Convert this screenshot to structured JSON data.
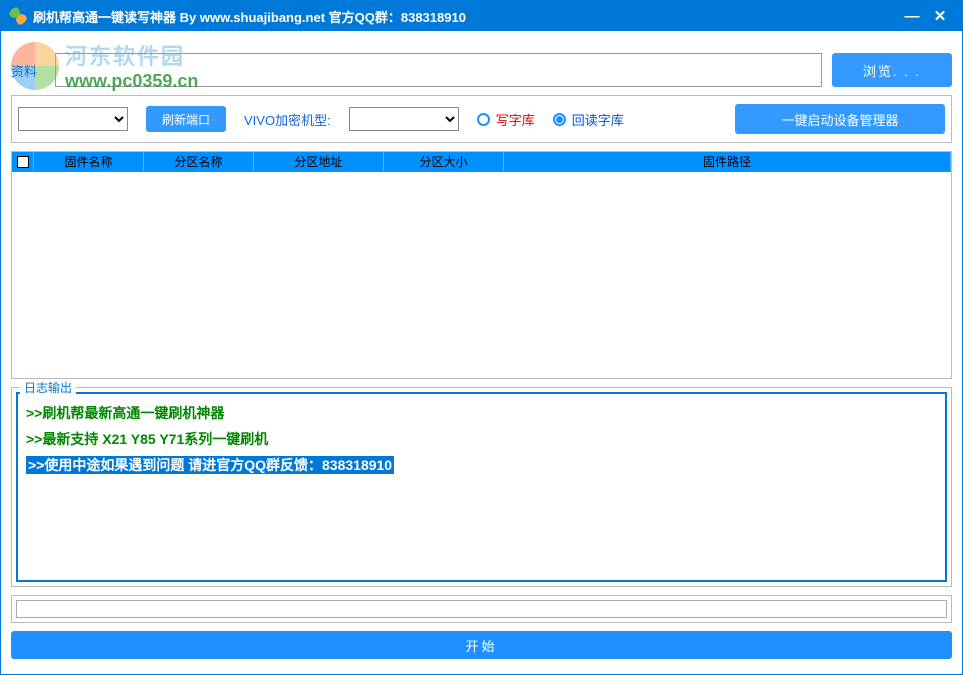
{
  "window": {
    "title": "刷机帮高通一键读写神器 By www.shuajibang.net 官方QQ群：838318910"
  },
  "watermark": {
    "cn": "河东软件园",
    "url": "www.pc0359.cn"
  },
  "row1": {
    "label": "资料",
    "path_value": "",
    "browse_label": "浏览. . ."
  },
  "controls": {
    "port_value": "",
    "refresh_label": "刷新端口",
    "vivo_label": "VIVO加密机型:",
    "vivo_value": "",
    "radio_write": "写字库",
    "radio_read": "回读字库",
    "radio_selected": "read",
    "devmgr_label": "一键启动设备管理器"
  },
  "table": {
    "columns": [
      "固件名称",
      "分区名称",
      "分区地址",
      "分区大小",
      "固件路径"
    ]
  },
  "log": {
    "legend": "日志输出",
    "lines": [
      {
        "text": ">>刷机帮最新高通一键刷机神器",
        "style": "green"
      },
      {
        "text": ">>最新支持 X21 Y85 Y71系列一键刷机",
        "style": "green"
      },
      {
        "text": ">>使用中途如果遇到问题 请进官方QQ群反馈：838318910",
        "style": "highlight"
      }
    ]
  },
  "footer": {
    "start_label": "开始"
  },
  "colors": {
    "primary": "#0078d7",
    "button": "#3399ff",
    "accent_blue": "#1e90ff",
    "header_blue": "#0090ff",
    "log_green": "#008800",
    "radio_red": "#e60000"
  }
}
